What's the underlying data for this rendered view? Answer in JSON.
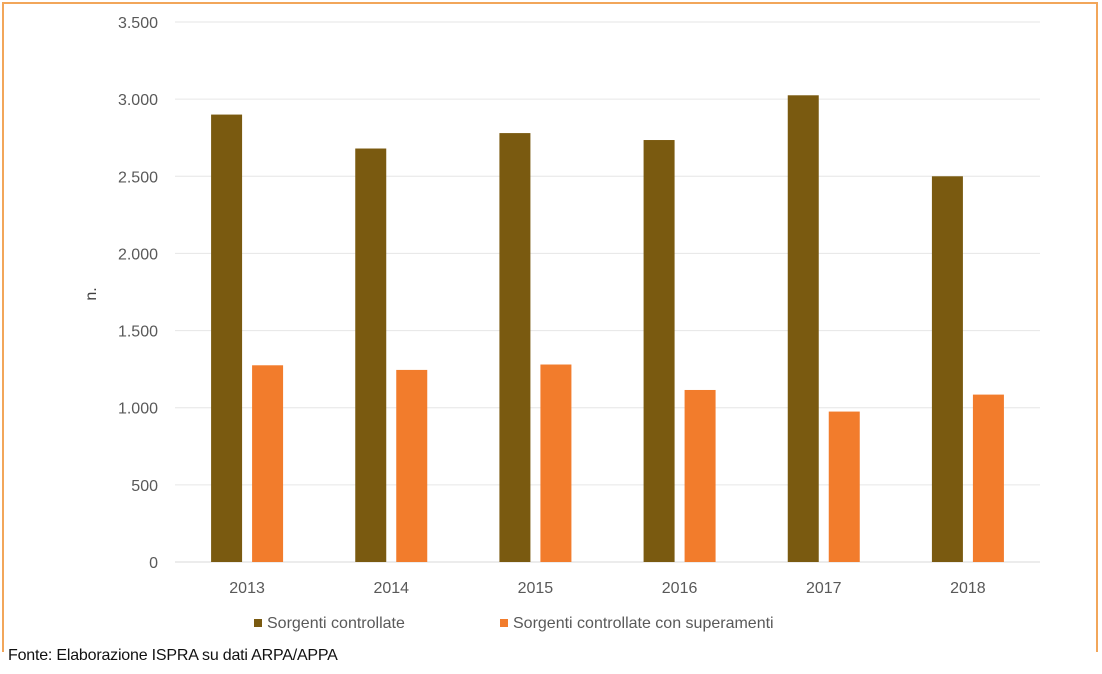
{
  "chart_data": {
    "type": "bar",
    "categories": [
      "2013",
      "2014",
      "2015",
      "2016",
      "2017",
      "2018"
    ],
    "series": [
      {
        "name": "Sorgenti controllate",
        "color": "#7a5a10",
        "values": [
          2900,
          2680,
          2780,
          2735,
          3025,
          2500
        ]
      },
      {
        "name": "Sorgenti controllate con superamenti",
        "color": "#f27c2c",
        "values": [
          1275,
          1245,
          1280,
          1115,
          975,
          1085
        ]
      }
    ],
    "ylabel": "n.",
    "ylim": [
      0,
      3500
    ],
    "yticks": [
      0,
      500,
      1000,
      1500,
      2000,
      2500,
      3000,
      3500
    ],
    "ytick_labels": [
      "0",
      "500",
      "1.000",
      "1.500",
      "2.000",
      "2.500",
      "3.000",
      "3.500"
    ],
    "grid": true,
    "legend_position": "bottom"
  },
  "source_note": "Fonte: Elaborazione ISPRA su dati ARPA/APPA"
}
